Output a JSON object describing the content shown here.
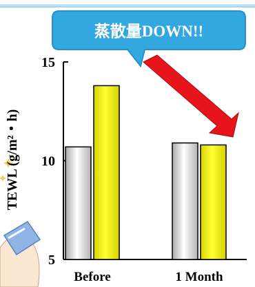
{
  "callout": {
    "text": "蒸散量DOWN!!",
    "fill": "#32a7e0",
    "stroke": "#2a8fc8"
  },
  "arrow_color": "#e8141b",
  "colors": {
    "before_bar": "#f2f2f2",
    "yellow_bar": "#f2f000",
    "axis": "#000000"
  },
  "chart_data": {
    "type": "bar",
    "categories": [
      "Before",
      "1 Month"
    ],
    "series": [
      {
        "values": [
          10.7,
          10.9
        ],
        "color": "silver-gradient"
      },
      {
        "values": [
          13.8,
          10.8
        ],
        "color": "#f2f000"
      }
    ],
    "title": "",
    "xlabel": "",
    "ylabel": "TEWL (g/m²・h)",
    "ylim": [
      5,
      15
    ],
    "yticks": [
      5,
      10,
      15
    ],
    "grid": false,
    "legend": "none"
  }
}
